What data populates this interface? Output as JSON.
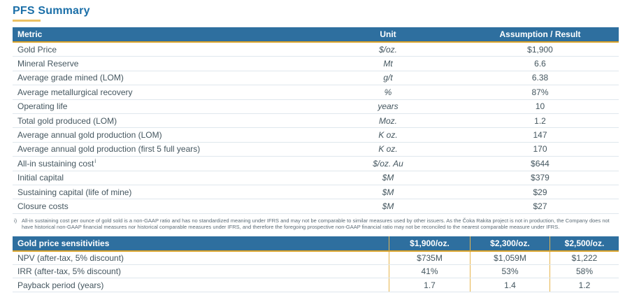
{
  "page_title": "PFS Summary",
  "colors": {
    "header_bg": "#2E6F9F",
    "accent_gold": "#D9A127",
    "title_blue": "#1B6FA8"
  },
  "pfs_table": {
    "headers": {
      "metric": "Metric",
      "unit": "Unit",
      "result": "Assumption / Result"
    },
    "rows": [
      {
        "metric": "Gold Price",
        "unit": "$/oz.",
        "result": "$1,900"
      },
      {
        "metric": "Mineral Reserve",
        "unit": "Mt",
        "result": "6.6"
      },
      {
        "metric": "Average grade mined (LOM)",
        "unit": "g/t",
        "result": "6.38"
      },
      {
        "metric": "Average metallurgical recovery",
        "unit": "%",
        "result": "87%"
      },
      {
        "metric": "Operating life",
        "unit": "years",
        "result": "10"
      },
      {
        "metric": "Total gold produced (LOM)",
        "unit": "Moz.",
        "result": "1.2"
      },
      {
        "metric": "Average annual gold production (LOM)",
        "unit": "K oz.",
        "result": "147"
      },
      {
        "metric": "Average annual gold production (first 5 full years)",
        "unit": "K oz.",
        "result": "170"
      },
      {
        "metric": "All-in sustaining cost",
        "metric_sup": "i",
        "unit": "$/oz. Au",
        "result": "$644"
      },
      {
        "metric": "Initial capital",
        "unit": "$M",
        "result": "$379"
      },
      {
        "metric": "Sustaining capital (life of mine)",
        "unit": "$M",
        "result": "$29"
      },
      {
        "metric": "Closure costs",
        "unit": "$M",
        "result": "$27"
      }
    ]
  },
  "footnote": {
    "marker": "i)",
    "text": "All-in sustaining cost per ounce of gold sold is a non-GAAP ratio and has no standardized meaning under IFRS and may not be comparable to similar measures used by other issuers. As the Čoka Rakita project is not in production, the Company does not have historical non-GAAP financial measures nor historical comparable measures under IFRS, and therefore the foregoing prospective non-GAAP financial ratio may not be reconciled to the nearest comparable measure under IFRS."
  },
  "sensitivities_table": {
    "title": "Gold price sensitivities",
    "columns": [
      "$1,900/oz.",
      "$2,300/oz.",
      "$2,500/oz."
    ],
    "rows": [
      {
        "label": "NPV (after-tax, 5% discount)",
        "values": [
          "$735M",
          "$1,059M",
          "$1,222"
        ]
      },
      {
        "label": "IRR (after-tax, 5% discount)",
        "values": [
          "41%",
          "53%",
          "58%"
        ]
      },
      {
        "label": "Payback period (years)",
        "values": [
          "1.7",
          "1.4",
          "1.2"
        ]
      }
    ]
  }
}
